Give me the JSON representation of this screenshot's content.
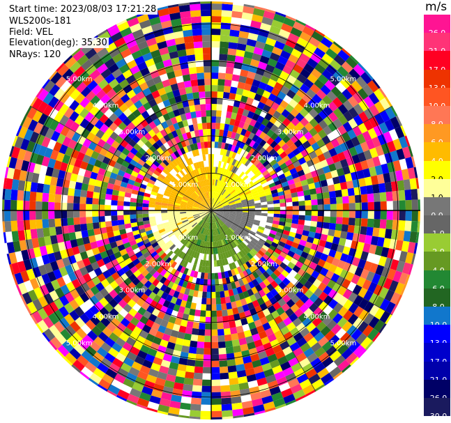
{
  "header": {
    "start_time": "Start time: 2023/08/03 17:21:28",
    "instrument": "WLS200s-181",
    "field": "Field: VEL",
    "elevation": "Elevation(deg): 35.30",
    "nrays": "NRays: 120"
  },
  "colorbar": {
    "unit": "m/s",
    "levels": [
      {
        "label": "26.0",
        "color": "#ff1493"
      },
      {
        "label": "21.0",
        "color": "#ff3377"
      },
      {
        "label": "17.0",
        "color": "#ff0022"
      },
      {
        "label": "13.0",
        "color": "#ee3300"
      },
      {
        "label": "10.0",
        "color": "#ff5522"
      },
      {
        "label": "8.0",
        "color": "#ff7755"
      },
      {
        "label": "6.0",
        "color": "#ff9922"
      },
      {
        "label": "4.0",
        "color": "#ffbb00"
      },
      {
        "label": "2.0",
        "color": "#ffff00"
      },
      {
        "label": "1.0",
        "color": "#ffff99"
      },
      {
        "label": "0.0",
        "color": "#777777"
      },
      {
        "label": "-1.0",
        "color": "#666666"
      },
      {
        "label": "-2.0",
        "color": "#99cc33"
      },
      {
        "label": "-4.0",
        "color": "#669922"
      },
      {
        "label": "-6.0",
        "color": "#228833"
      },
      {
        "label": "-8.0",
        "color": "#226622"
      },
      {
        "label": "-10.0",
        "color": "#1177cc"
      },
      {
        "label": "-13.0",
        "color": "#0000ff"
      },
      {
        "label": "-17.0",
        "color": "#0000cc"
      },
      {
        "label": "-21.0",
        "color": "#0000aa"
      },
      {
        "label": "-26.0",
        "color": "#000066"
      },
      {
        "label": "-30.0",
        "color": "#1a1a5e"
      }
    ]
  },
  "chart_data": {
    "type": "heatmap",
    "field": "VEL",
    "unit": "m/s",
    "nrays": 120,
    "elevation_deg": 35.3,
    "range_rings": [
      {
        "label": "1.00km",
        "range_km": 1
      },
      {
        "label": "2.00km",
        "range_km": 2
      },
      {
        "label": "3.00km",
        "range_km": 3
      },
      {
        "label": "4.00km",
        "range_km": 4
      },
      {
        "label": "5.00km",
        "range_km": 5
      }
    ],
    "spokes_deg": [
      0,
      30,
      60,
      90,
      120,
      150,
      180,
      210,
      240,
      270,
      300,
      330
    ],
    "max_range_km": 5.6,
    "valid_data_range_km": 1.75,
    "velocity_by_sector": [
      {
        "azimuth_from": 270,
        "azimuth_to": 360,
        "velocity": 4.0
      },
      {
        "azimuth_from": 0,
        "azimuth_to": 75,
        "velocity": 2.0
      },
      {
        "azimuth_from": 75,
        "azimuth_to": 135,
        "velocity": 0.0
      },
      {
        "azimuth_from": 135,
        "azimuth_to": 225,
        "velocity": -4.0
      },
      {
        "azimuth_from": 225,
        "azimuth_to": 270,
        "velocity": 1.0
      }
    ],
    "noise_beyond_valid_range": true
  }
}
